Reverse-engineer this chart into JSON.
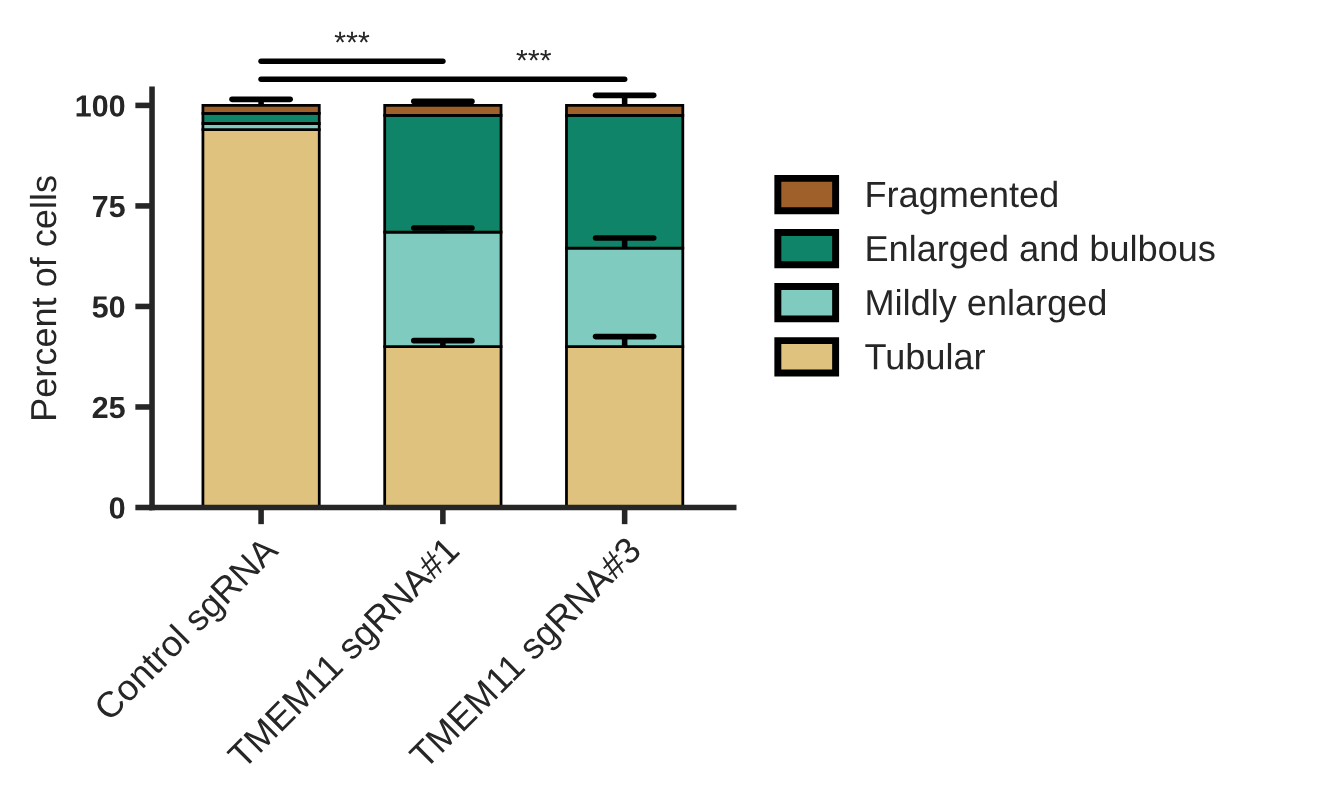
{
  "chart_data": {
    "type": "bar",
    "stacked": true,
    "ylabel": "Percent of cells",
    "categories": [
      "Control sgRNA",
      "TMEM11 sgRNA#1",
      "TMEM11 sgRNA#3"
    ],
    "series": [
      {
        "name": "Tubular",
        "color": "#dfc27d",
        "values": [
          94,
          40,
          40
        ],
        "errors": [
          null,
          [
            40,
            41.5
          ],
          [
            40,
            42.5
          ]
        ]
      },
      {
        "name": "Mildly enlarged",
        "color": "#80cbbf",
        "values": [
          1.5,
          28.5,
          24.5
        ],
        "errors": [
          null,
          [
            68.5,
            69.5
          ],
          [
            64.5,
            67
          ]
        ]
      },
      {
        "name": "Enlarged and bulbous",
        "color": "#0f8468",
        "values": [
          2.5,
          29,
          33
        ]
      },
      {
        "name": "Fragmented",
        "color": "#a0602a",
        "values": [
          2,
          2.5,
          2.5
        ],
        "errors": [
          [
            100,
            101.5
          ],
          [
            100,
            101
          ],
          [
            100,
            102.5
          ]
        ]
      }
    ],
    "ylim": [
      0,
      104
    ],
    "yticks": [
      0,
      25,
      50,
      75,
      100
    ],
    "grid": false,
    "legend": "right",
    "annotations": [
      "***",
      "***"
    ]
  }
}
